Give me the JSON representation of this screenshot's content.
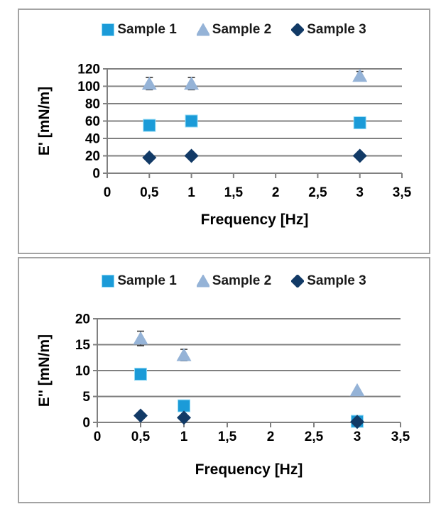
{
  "style": {
    "background": "#ffffff",
    "box_border_color": "#a3a3a3",
    "grid_color": "#808080",
    "text_color": "#000000",
    "error_bar_color": "#3a3a3a",
    "sample1_color": "#1b9bd8",
    "sample1_edge_color": "#8fd9f5",
    "sample2_color": "#95b3d7",
    "sample3_color": "#123a66"
  },
  "legend": {
    "items": [
      {
        "label": "Sample 1",
        "marker": "square",
        "color": "#1b9bd8"
      },
      {
        "label": "Sample 2",
        "marker": "triangle",
        "color": "#95b3d7"
      },
      {
        "label": "Sample 3",
        "marker": "diamond",
        "color": "#123a66"
      }
    ]
  },
  "chart_data": [
    {
      "type": "scatter",
      "title": "",
      "xlabel": "Frequency [Hz]",
      "ylabel": "E' [mN/m]",
      "xlim": [
        0,
        3.5
      ],
      "ylim": [
        0,
        120
      ],
      "grid": true,
      "legend_position": "top",
      "xticks": [
        0,
        0.5,
        1,
        1.5,
        2,
        2.5,
        3,
        3.5
      ],
      "xtick_labels": [
        "0",
        "0,5",
        "1",
        "1,5",
        "2",
        "2,5",
        "3",
        "3,5"
      ],
      "yticks": [
        0,
        20,
        40,
        60,
        80,
        100,
        120
      ],
      "ytick_labels": [
        "0",
        "20",
        "40",
        "60",
        "80",
        "100",
        "120"
      ],
      "series": [
        {
          "name": "Sample 1",
          "marker": "square",
          "color": "#1b9bd8",
          "points": [
            {
              "x": 0.5,
              "y": 55
            },
            {
              "x": 1,
              "y": 60
            },
            {
              "x": 3,
              "y": 58
            }
          ]
        },
        {
          "name": "Sample 2",
          "marker": "triangle",
          "color": "#95b3d7",
          "points": [
            {
              "x": 0.5,
              "y": 103,
              "err": 7
            },
            {
              "x": 1,
              "y": 103,
              "err": 7
            },
            {
              "x": 3,
              "y": 112,
              "err": 5
            }
          ]
        },
        {
          "name": "Sample 3",
          "marker": "diamond",
          "color": "#123a66",
          "points": [
            {
              "x": 0.5,
              "y": 18
            },
            {
              "x": 1,
              "y": 20
            },
            {
              "x": 3,
              "y": 20
            }
          ]
        }
      ]
    },
    {
      "type": "scatter",
      "title": "",
      "xlabel": "Frequency [Hz]",
      "ylabel": "E'' [mN/m]",
      "xlim": [
        0,
        3.5
      ],
      "ylim": [
        0,
        20
      ],
      "grid": true,
      "legend_position": "top",
      "xticks": [
        0,
        0.5,
        1,
        1.5,
        2,
        2.5,
        3,
        3.5
      ],
      "xtick_labels": [
        "0",
        "0,5",
        "1",
        "1,5",
        "2",
        "2,5",
        "3",
        "3,5"
      ],
      "yticks": [
        0,
        5,
        10,
        15,
        20
      ],
      "ytick_labels": [
        "0",
        "5",
        "10",
        "15",
        "20"
      ],
      "series": [
        {
          "name": "Sample 1",
          "marker": "square",
          "color": "#1b9bd8",
          "points": [
            {
              "x": 0.5,
              "y": 9.3
            },
            {
              "x": 1,
              "y": 3.2
            },
            {
              "x": 3,
              "y": 0.2
            }
          ]
        },
        {
          "name": "Sample 2",
          "marker": "triangle",
          "color": "#95b3d7",
          "points": [
            {
              "x": 0.5,
              "y": 16.2,
              "err": 1.4
            },
            {
              "x": 1,
              "y": 13,
              "err": 1.1
            },
            {
              "x": 3,
              "y": 6.2
            }
          ]
        },
        {
          "name": "Sample 3",
          "marker": "diamond",
          "color": "#123a66",
          "points": [
            {
              "x": 0.5,
              "y": 1.3
            },
            {
              "x": 1,
              "y": 0.9
            },
            {
              "x": 3,
              "y": 0.1
            }
          ]
        }
      ]
    }
  ]
}
